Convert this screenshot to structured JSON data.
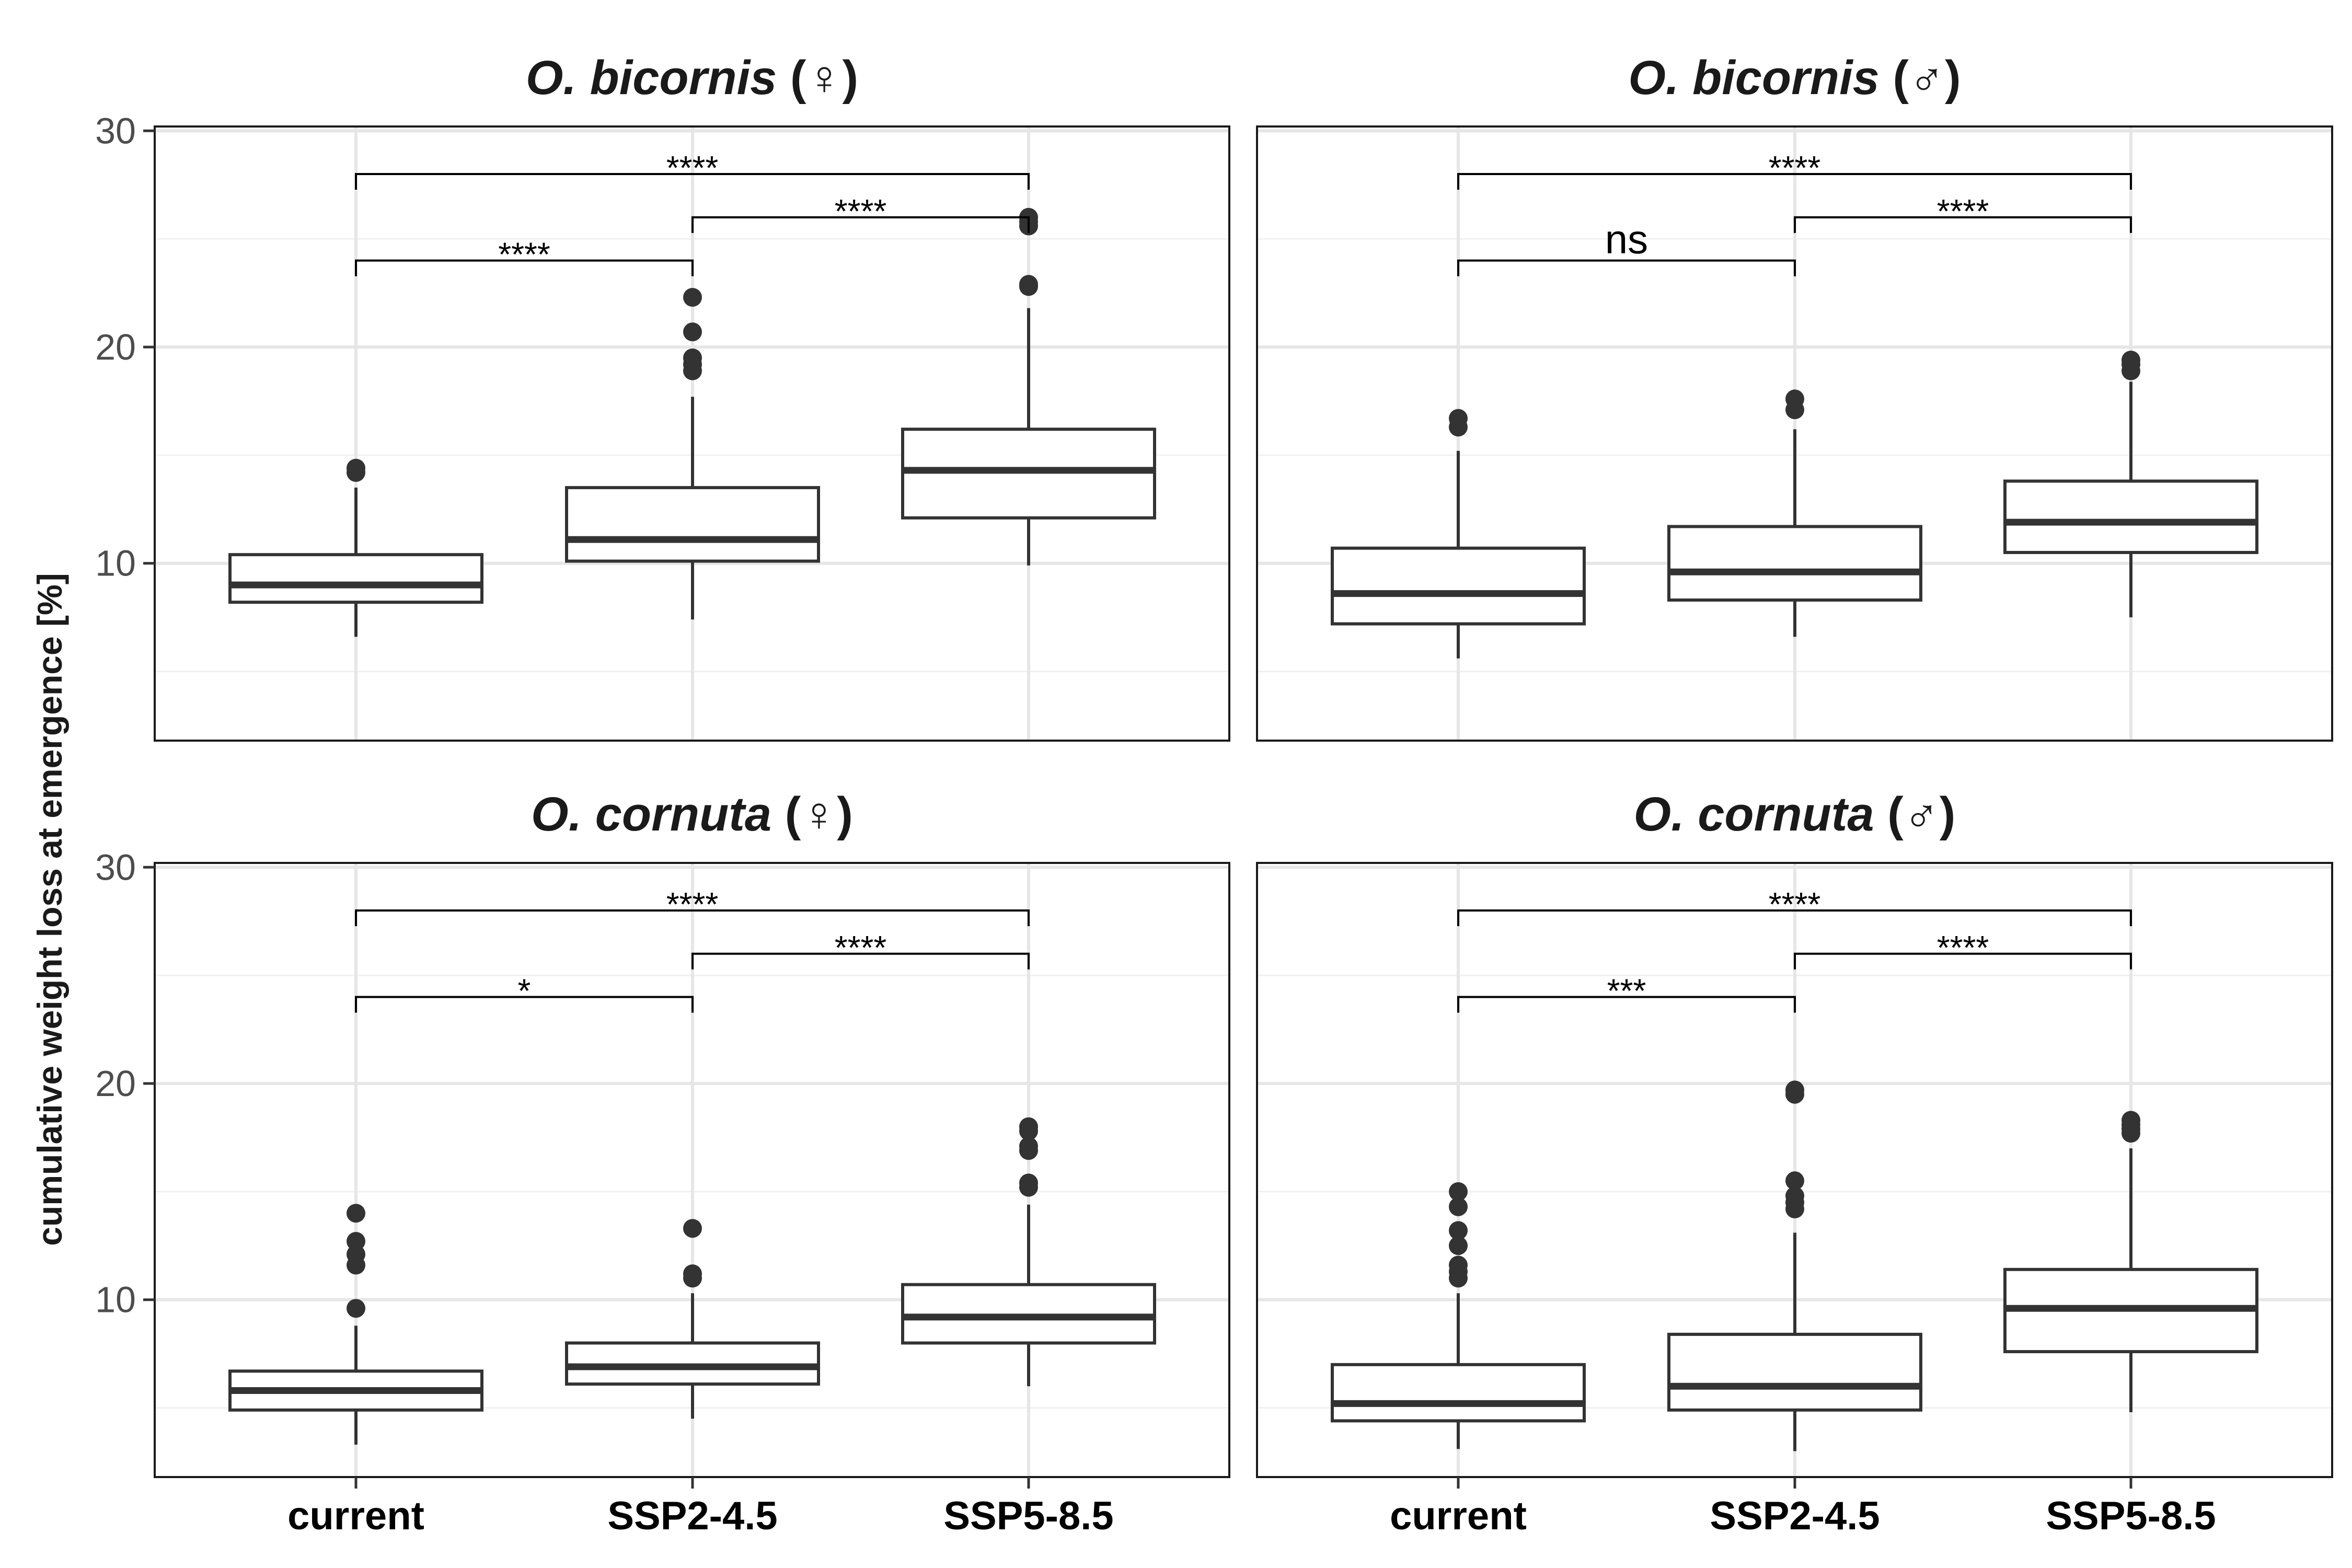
{
  "ylabel": "cumulative weight loss at emergence [%]",
  "x_ticks": [
    "current",
    "SSP2-4.5",
    "SSP5-8.5"
  ],
  "y_ticks": [
    "10",
    "20",
    "30"
  ],
  "chart_data": [
    {
      "type": "boxplot",
      "title": {
        "species": "O. bicornis",
        "sex": "(♀)"
      },
      "categories": [
        "current",
        "SSP2-4.5",
        "SSP5-8.5"
      ],
      "ylim": [
        1.8,
        30.2
      ],
      "boxes": [
        {
          "whisker_low": 6.6,
          "q1": 8.2,
          "median": 9.0,
          "q3": 10.4,
          "whisker_high": 13.5,
          "outliers": [
            14.2,
            14.4
          ]
        },
        {
          "whisker_low": 7.4,
          "q1": 10.1,
          "median": 11.1,
          "q3": 13.5,
          "whisker_high": 17.7,
          "outliers": [
            18.9,
            19.2,
            19.5,
            20.7,
            22.3
          ]
        },
        {
          "whisker_low": 9.9,
          "q1": 12.1,
          "median": 14.3,
          "q3": 16.2,
          "whisker_high": 21.8,
          "outliers": [
            22.8,
            22.9,
            25.6,
            25.8,
            26.0
          ]
        }
      ],
      "comparisons": [
        {
          "from": "current",
          "to": "SSP2-4.5",
          "y": 24.0,
          "label": "****"
        },
        {
          "from": "SSP2-4.5",
          "to": "SSP5-8.5",
          "y": 26.0,
          "label": "****"
        },
        {
          "from": "current",
          "to": "SSP5-8.5",
          "y": 28.0,
          "label": "****"
        }
      ]
    },
    {
      "type": "boxplot",
      "title": {
        "species": "O. bicornis",
        "sex": "(♂)"
      },
      "categories": [
        "current",
        "SSP2-4.5",
        "SSP5-8.5"
      ],
      "ylim": [
        1.8,
        30.2
      ],
      "boxes": [
        {
          "whisker_low": 5.6,
          "q1": 7.2,
          "median": 8.6,
          "q3": 10.7,
          "whisker_high": 15.2,
          "outliers": [
            16.3,
            16.7
          ]
        },
        {
          "whisker_low": 6.6,
          "q1": 8.3,
          "median": 9.6,
          "q3": 11.7,
          "whisker_high": 16.2,
          "outliers": [
            17.1,
            17.6
          ]
        },
        {
          "whisker_low": 7.5,
          "q1": 10.5,
          "median": 11.9,
          "q3": 13.8,
          "whisker_high": 18.4,
          "outliers": [
            18.9,
            19.2,
            19.4
          ]
        }
      ],
      "comparisons": [
        {
          "from": "current",
          "to": "SSP2-4.5",
          "y": 24.0,
          "label": "ns"
        },
        {
          "from": "SSP2-4.5",
          "to": "SSP5-8.5",
          "y": 26.0,
          "label": "****"
        },
        {
          "from": "current",
          "to": "SSP5-8.5",
          "y": 28.0,
          "label": "****"
        }
      ]
    },
    {
      "type": "boxplot",
      "title": {
        "species": "O. cornuta",
        "sex": "(♀)"
      },
      "categories": [
        "current",
        "SSP2-4.5",
        "SSP5-8.5"
      ],
      "ylim": [
        1.8,
        30.2
      ],
      "boxes": [
        {
          "whisker_low": 3.3,
          "q1": 4.9,
          "median": 5.8,
          "q3": 6.7,
          "whisker_high": 8.8,
          "outliers": [
            9.6,
            11.6,
            12.1,
            12.7,
            14.0
          ]
        },
        {
          "whisker_low": 4.5,
          "q1": 6.1,
          "median": 6.9,
          "q3": 8.0,
          "whisker_high": 10.3,
          "outliers": [
            11.0,
            11.2,
            13.3
          ]
        },
        {
          "whisker_low": 6.0,
          "q1": 8.0,
          "median": 9.2,
          "q3": 10.7,
          "whisker_high": 14.4,
          "outliers": [
            15.2,
            15.4,
            16.9,
            17.1,
            17.8,
            18.0
          ]
        }
      ],
      "comparisons": [
        {
          "from": "current",
          "to": "SSP2-4.5",
          "y": 24.0,
          "label": "*"
        },
        {
          "from": "SSP2-4.5",
          "to": "SSP5-8.5",
          "y": 26.0,
          "label": "****"
        },
        {
          "from": "current",
          "to": "SSP5-8.5",
          "y": 28.0,
          "label": "****"
        }
      ]
    },
    {
      "type": "boxplot",
      "title": {
        "species": "O. cornuta",
        "sex": "(♂)"
      },
      "categories": [
        "current",
        "SSP2-4.5",
        "SSP5-8.5"
      ],
      "ylim": [
        1.8,
        30.2
      ],
      "boxes": [
        {
          "whisker_low": 3.1,
          "q1": 4.4,
          "median": 5.2,
          "q3": 7.0,
          "whisker_high": 10.3,
          "outliers": [
            11.0,
            11.3,
            11.6,
            12.5,
            13.2,
            14.3,
            15.0
          ]
        },
        {
          "whisker_low": 3.0,
          "q1": 4.9,
          "median": 6.0,
          "q3": 8.4,
          "whisker_high": 13.1,
          "outliers": [
            14.2,
            14.5,
            14.8,
            15.5,
            19.5,
            19.7
          ]
        },
        {
          "whisker_low": 4.8,
          "q1": 7.6,
          "median": 9.6,
          "q3": 11.4,
          "whisker_high": 17.0,
          "outliers": [
            17.7,
            17.9,
            18.1,
            18.3
          ]
        }
      ],
      "comparisons": [
        {
          "from": "current",
          "to": "SSP2-4.5",
          "y": 24.0,
          "label": "***"
        },
        {
          "from": "SSP2-4.5",
          "to": "SSP5-8.5",
          "y": 26.0,
          "label": "****"
        },
        {
          "from": "current",
          "to": "SSP5-8.5",
          "y": 28.0,
          "label": "****"
        }
      ]
    }
  ]
}
